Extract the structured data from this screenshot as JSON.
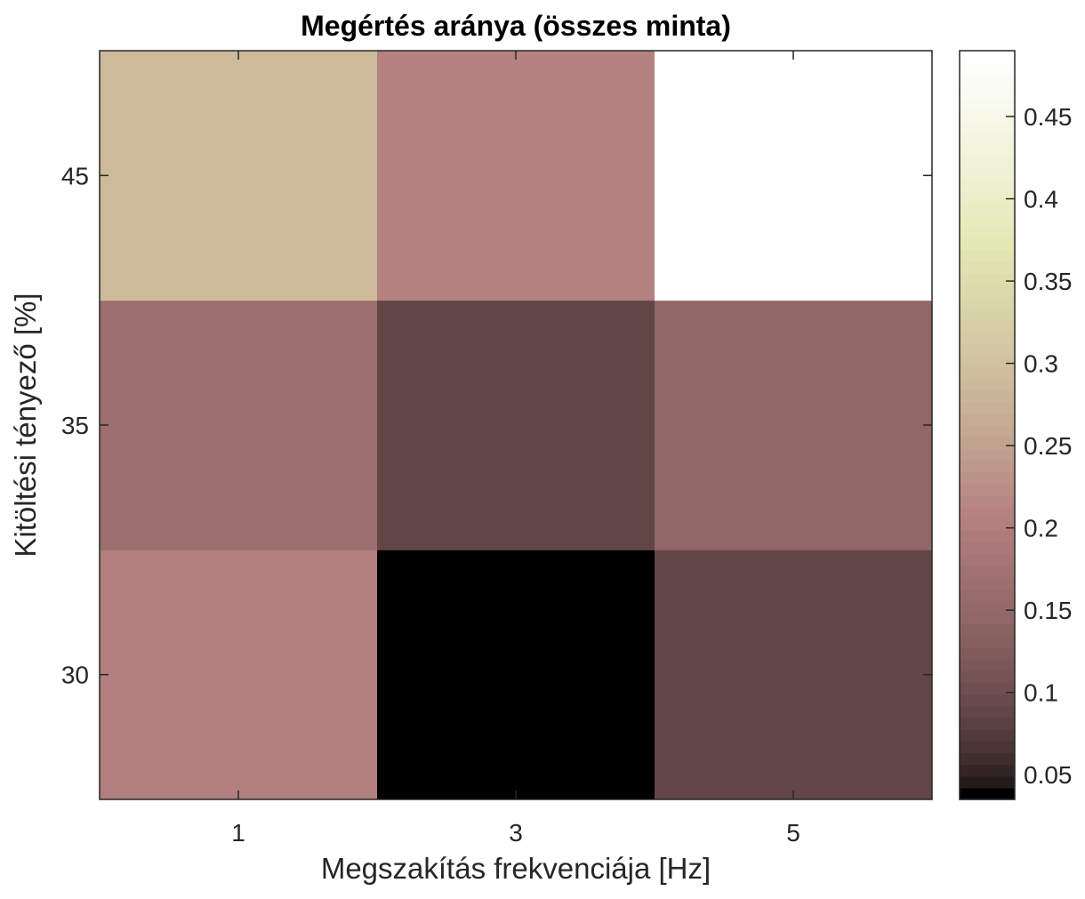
{
  "chart_data": {
    "type": "heatmap",
    "title": "Megértés aránya (összes minta)",
    "xlabel": "Megszakítás frekvenciája [Hz]",
    "ylabel": "Kitöltési tényező [%]",
    "x_categories": [
      "1",
      "3",
      "5"
    ],
    "y_categories": [
      "30",
      "35",
      "45"
    ],
    "values": [
      [
        0.2,
        0.035,
        0.09
      ],
      [
        0.165,
        0.09,
        0.145
      ],
      [
        0.285,
        0.21,
        0.49
      ]
    ],
    "colorbar": {
      "min": 0.035,
      "max": 0.49,
      "ticks": [
        0.05,
        0.1,
        0.15,
        0.2,
        0.25,
        0.3,
        0.35,
        0.4,
        0.45
      ],
      "colormap": "pink",
      "levels": 64
    }
  }
}
